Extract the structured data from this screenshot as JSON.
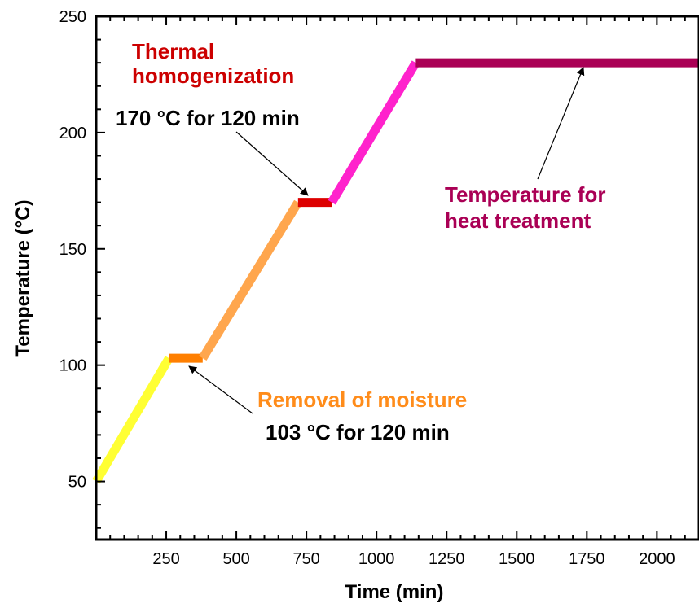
{
  "chart_data": {
    "type": "line",
    "xlabel": "Time (min)",
    "ylabel": "Temperature (°C)",
    "xlim": [
      0,
      2150
    ],
    "ylim": [
      25,
      250
    ],
    "x_ticks": [
      250,
      500,
      750,
      1000,
      1250,
      1500,
      1750,
      2000
    ],
    "x_tick_labels": [
      "250",
      "500",
      "750",
      "1000",
      "1250",
      "1500",
      "1750",
      "2000"
    ],
    "y_ticks": [
      50,
      100,
      150,
      200,
      250
    ],
    "y_tick_labels": [
      "50",
      "100",
      "150",
      "200",
      "250"
    ],
    "grid": false,
    "segments": [
      {
        "x": [
          0,
          260
        ],
        "y": [
          50,
          103
        ],
        "color": "#ffff33"
      },
      {
        "x": [
          260,
          380
        ],
        "y": [
          103,
          103
        ],
        "color": "#ff7f00"
      },
      {
        "x": [
          380,
          720
        ],
        "y": [
          103,
          170
        ],
        "color": "#ffa64d"
      },
      {
        "x": [
          720,
          840
        ],
        "y": [
          170,
          170
        ],
        "color": "#dd0000"
      },
      {
        "x": [
          840,
          1140
        ],
        "y": [
          170,
          230
        ],
        "color": "#ff22cc"
      },
      {
        "x": [
          1140,
          2150
        ],
        "y": [
          230,
          230
        ],
        "color": "#aa0055"
      }
    ],
    "annotations": [
      {
        "id": "thermal-title",
        "lines": [
          "Thermal",
          "homogenization"
        ],
        "color": "#cc0000"
      },
      {
        "id": "thermal-detail",
        "lines": [
          "170 °C for 120 min"
        ],
        "color": "#000000"
      },
      {
        "id": "moisture-title",
        "lines": [
          "Removal of moisture"
        ],
        "color": "#ff8c1a"
      },
      {
        "id": "moisture-detail",
        "lines": [
          "103 °C for 120 min"
        ],
        "color": "#000000"
      },
      {
        "id": "heat-treatment",
        "lines": [
          "Temperature for",
          "heat treatment"
        ],
        "color": "#aa0055"
      }
    ]
  }
}
